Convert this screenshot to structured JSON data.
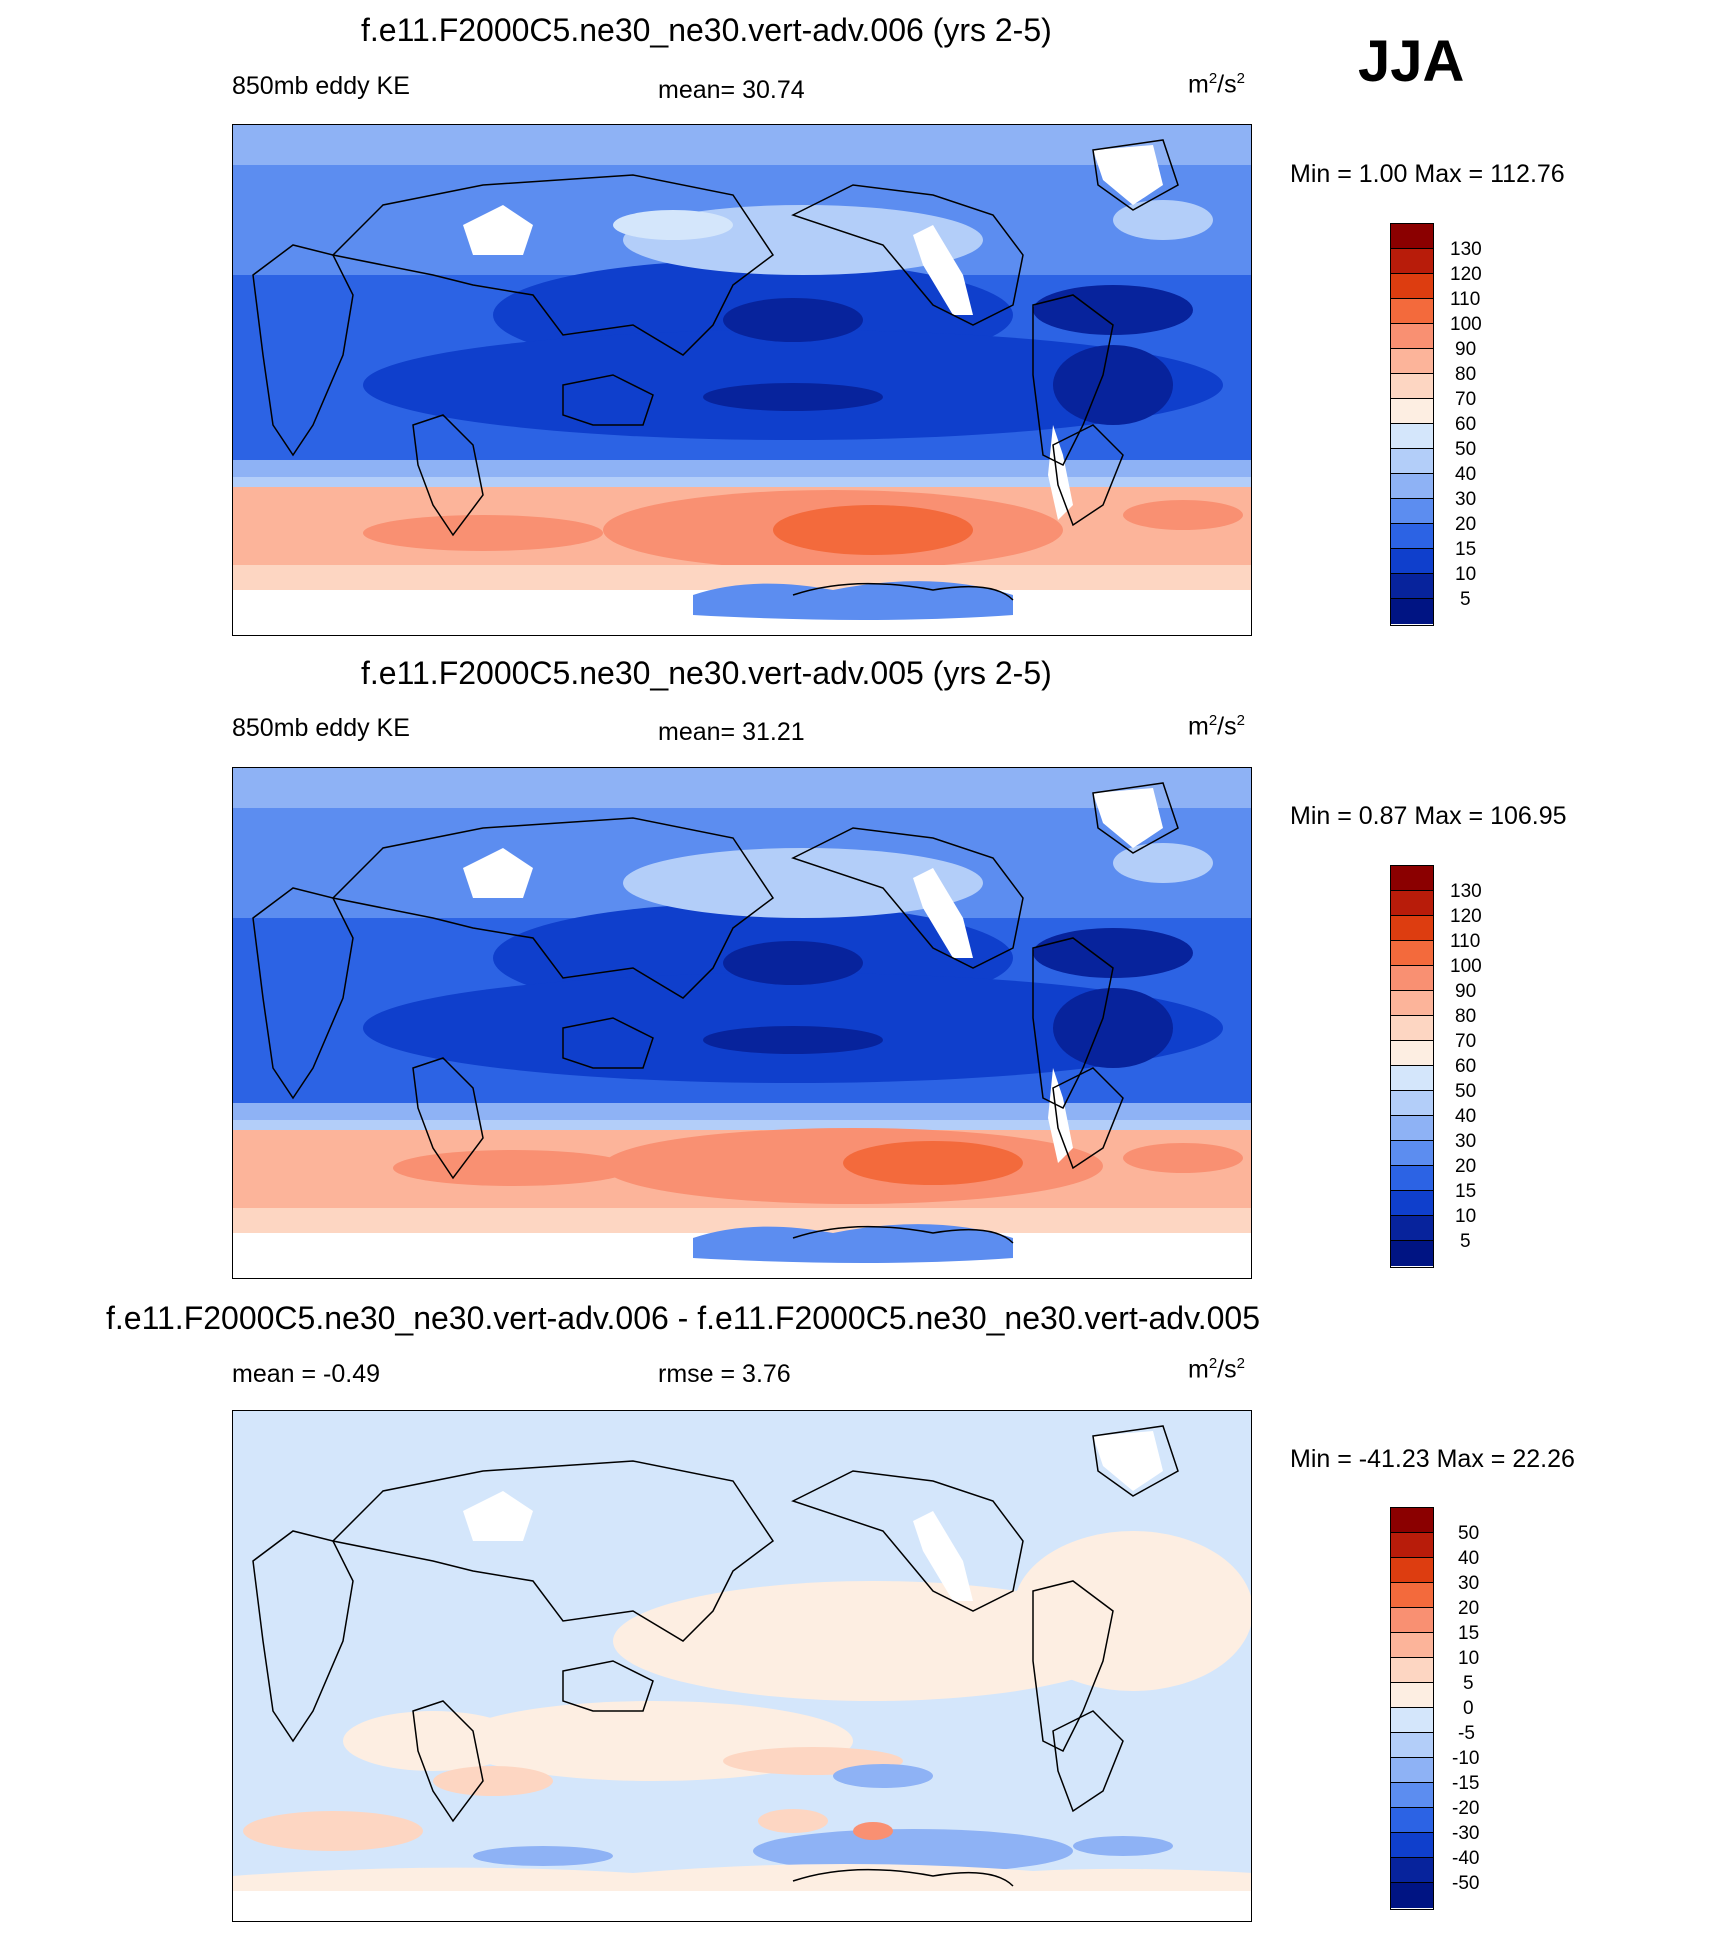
{
  "season": "JJA",
  "panels": [
    {
      "title": "f.e11.F2000C5.ne30_ne30.vert-adv.006 (yrs 2-5)",
      "left_label": "850mb eddy KE",
      "center_label": "mean=  30.74",
      "units": "m2/s2",
      "minmax": "Min =    1.00 Max = 112.76",
      "colorbar_labels": [
        "130",
        "120",
        "110",
        "100",
        "90",
        "80",
        "70",
        "60",
        "50",
        "40",
        "30",
        "20",
        "15",
        "10",
        "5"
      ]
    },
    {
      "title": "f.e11.F2000C5.ne30_ne30.vert-adv.005 (yrs 2-5)",
      "left_label": "850mb eddy KE",
      "center_label": "mean=  31.21",
      "units": "m2/s2",
      "minmax": "Min =    0.87 Max = 106.95",
      "colorbar_labels": [
        "130",
        "120",
        "110",
        "100",
        "90",
        "80",
        "70",
        "60",
        "50",
        "40",
        "30",
        "20",
        "15",
        "10",
        "5"
      ]
    },
    {
      "title": "f.e11.F2000C5.ne30_ne30.vert-adv.006 - f.e11.F2000C5.ne30_ne30.vert-adv.005",
      "left_label": "mean =  -0.49",
      "center_label": "rmse =   3.76",
      "units": "m2/s2",
      "minmax": "Min = -41.23 Max =  22.26",
      "colorbar_labels": [
        "50",
        "40",
        "30",
        "20",
        "15",
        "10",
        "5",
        "0",
        "-5",
        "-10",
        "-15",
        "-20",
        "-30",
        "-40",
        "-50"
      ]
    }
  ],
  "colors": {
    "colorbar": [
      "#8b0000",
      "#b81c0a",
      "#dd3d10",
      "#f36a3c",
      "#f99072",
      "#fcb49a",
      "#fdd6c2",
      "#fdeee2",
      "#d4e6fb",
      "#b3cef9",
      "#8eb2f5",
      "#5c8df0",
      "#2c63e4",
      "#0f3fcc",
      "#07239c",
      "#001483"
    ],
    "land_outline": "#000000",
    "no_data": "#ffffff"
  },
  "chart_data": [
    {
      "type": "heatmap",
      "title": "f.e11.F2000C5.ne30_ne30.vert-adv.006 (yrs 2-5)",
      "variable": "850mb eddy KE",
      "units": "m2/s2",
      "mean": 30.74,
      "min": 1.0,
      "max": 112.76,
      "levels": [
        5,
        10,
        15,
        20,
        30,
        40,
        50,
        60,
        70,
        80,
        90,
        100,
        110,
        120,
        130
      ]
    },
    {
      "type": "heatmap",
      "title": "f.e11.F2000C5.ne30_ne30.vert-adv.005 (yrs 2-5)",
      "variable": "850mb eddy KE",
      "units": "m2/s2",
      "mean": 31.21,
      "min": 0.87,
      "max": 106.95,
      "levels": [
        5,
        10,
        15,
        20,
        30,
        40,
        50,
        60,
        70,
        80,
        90,
        100,
        110,
        120,
        130
      ]
    },
    {
      "type": "heatmap",
      "title": "f.e11.F2000C5.ne30_ne30.vert-adv.006 - f.e11.F2000C5.ne30_ne30.vert-adv.005",
      "units": "m2/s2",
      "mean": -0.49,
      "rmse": 3.76,
      "min": -41.23,
      "max": 22.26,
      "levels": [
        -50,
        -40,
        -30,
        -20,
        -15,
        -10,
        -5,
        0,
        5,
        10,
        15,
        20,
        30,
        40,
        50
      ]
    }
  ]
}
